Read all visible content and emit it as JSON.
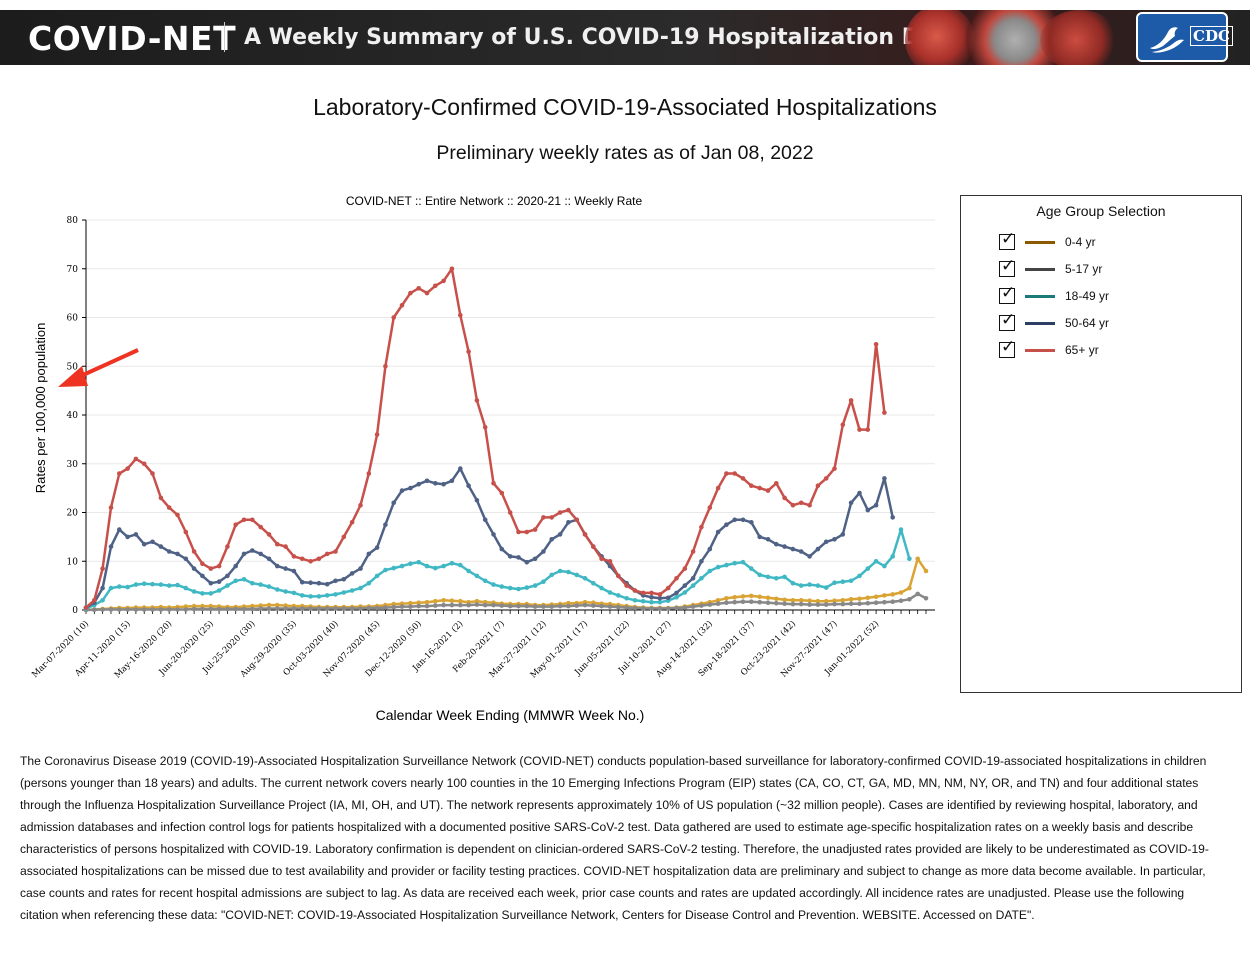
{
  "header": {
    "brand": "COVID-NET",
    "subtitle": "A Weekly Summary of U.S. COVID-19 Hospitalization Data",
    "logo_text": "CDC"
  },
  "title": "Laboratory-Confirmed COVID-19-Associated Hospitalizations",
  "subtitle": "Preliminary weekly rates as of Jan 08, 2022",
  "legend": {
    "title": "Age Group Selection",
    "items": [
      {
        "label": "0-4 yr",
        "checked": true,
        "color": "#8B5A00"
      },
      {
        "label": "5-17 yr",
        "checked": true,
        "color": "#444444"
      },
      {
        "label": "18-49 yr",
        "checked": true,
        "color": "#1a7a7a"
      },
      {
        "label": "50-64 yr",
        "checked": true,
        "color": "#2e3f66"
      },
      {
        "label": "65+ yr",
        "checked": true,
        "color": "#c8504a"
      }
    ]
  },
  "chart_data": {
    "type": "line",
    "title": "COVID-NET :: Entire Network :: 2020-21 :: Weekly Rate",
    "xlabel": "Calendar Week Ending (MMWR Week No.)",
    "ylabel": "Rates per 100,000 population",
    "ylim": [
      0,
      80
    ],
    "yticks": [
      0,
      10,
      20,
      30,
      40,
      50,
      60,
      70,
      80
    ],
    "xtick_labels": [
      "Mar-07-2020 (10)",
      "Apr-11-2020 (15)",
      "May-16-2020 (20)",
      "Jun-20-2020 (25)",
      "Jul-25-2020 (30)",
      "Aug-29-2020 (35)",
      "Oct-03-2020 (40)",
      "Nov-07-2020 (45)",
      "Dec-12-2020 (50)",
      "Jan-16-2021 (2)",
      "Feb-20-2021 (7)",
      "Mar-27-2021 (12)",
      "May-01-2021 (17)",
      "Jun-05-2021 (22)",
      "Jul-10-2021 (27)",
      "Aug-14-2021 (32)",
      "Sep-18-2021 (37)",
      "Oct-23-2021 (42)",
      "Nov-27-2021 (47)",
      "Jan-01-2022 (52)"
    ],
    "grid": true,
    "series": [
      {
        "name": "0-4 yr",
        "color": "#d9a434",
        "values": [
          0,
          0.1,
          0.2,
          0.3,
          0.4,
          0.4,
          0.5,
          0.5,
          0.5,
          0.6,
          0.5,
          0.6,
          0.7,
          0.8,
          0.8,
          0.8,
          0.7,
          0.6,
          0.6,
          0.7,
          0.8,
          0.9,
          1.0,
          1.0,
          0.9,
          0.8,
          0.8,
          0.7,
          0.6,
          0.6,
          0.6,
          0.6,
          0.6,
          0.7,
          0.7,
          0.8,
          1.0,
          1.2,
          1.3,
          1.4,
          1.5,
          1.6,
          1.8,
          2.0,
          1.9,
          1.8,
          1.6,
          1.8,
          1.6,
          1.5,
          1.3,
          1.2,
          1.2,
          1.2,
          1.0,
          1.0,
          1.1,
          1.2,
          1.4,
          1.4,
          1.6,
          1.5,
          1.3,
          1.2,
          1.0,
          0.8,
          0.6,
          0.5,
          0.4,
          0.4,
          0.4,
          0.5,
          0.7,
          1.0,
          1.3,
          1.6,
          2.0,
          2.4,
          2.6,
          2.8,
          2.9,
          2.7,
          2.5,
          2.3,
          2.1,
          2.0,
          2.0,
          1.9,
          1.8,
          1.8,
          1.9,
          2.0,
          2.2,
          2.3,
          2.5,
          2.7,
          3.0,
          3.2,
          3.6,
          4.5,
          10.5,
          8.0
        ]
      },
      {
        "name": "5-17 yr",
        "color": "#888888",
        "values": [
          0,
          0.05,
          0.1,
          0.1,
          0.1,
          0.1,
          0.1,
          0.1,
          0.1,
          0.1,
          0.1,
          0.1,
          0.1,
          0.2,
          0.2,
          0.2,
          0.2,
          0.2,
          0.2,
          0.2,
          0.2,
          0.3,
          0.3,
          0.3,
          0.3,
          0.3,
          0.3,
          0.3,
          0.3,
          0.3,
          0.3,
          0.3,
          0.3,
          0.3,
          0.4,
          0.4,
          0.5,
          0.6,
          0.7,
          0.7,
          0.8,
          0.8,
          0.9,
          1.0,
          1.0,
          1.0,
          1.0,
          1.1,
          1.0,
          1.0,
          0.9,
          0.8,
          0.8,
          0.8,
          0.7,
          0.7,
          0.7,
          0.8,
          0.8,
          0.9,
          1.0,
          0.9,
          0.8,
          0.7,
          0.6,
          0.5,
          0.4,
          0.3,
          0.3,
          0.3,
          0.3,
          0.4,
          0.5,
          0.7,
          0.9,
          1.1,
          1.3,
          1.5,
          1.6,
          1.7,
          1.7,
          1.6,
          1.5,
          1.4,
          1.3,
          1.2,
          1.2,
          1.1,
          1.1,
          1.1,
          1.2,
          1.2,
          1.3,
          1.3,
          1.4,
          1.5,
          1.6,
          1.7,
          1.9,
          2.2,
          3.3,
          2.4
        ]
      },
      {
        "name": "18-49 yr",
        "color": "#3fb8c4",
        "values": [
          0.3,
          1.0,
          2.0,
          4.5,
          4.8,
          4.7,
          5.2,
          5.4,
          5.3,
          5.2,
          5.0,
          5.1,
          4.5,
          3.8,
          3.4,
          3.4,
          4.0,
          5.0,
          6.0,
          6.3,
          5.5,
          5.2,
          4.8,
          4.2,
          3.8,
          3.5,
          3.0,
          2.8,
          2.8,
          3.0,
          3.2,
          3.6,
          4.0,
          4.5,
          5.5,
          7.0,
          8.2,
          8.6,
          9.0,
          9.5,
          9.8,
          9.0,
          8.6,
          9.0,
          9.6,
          9.2,
          8.0,
          7.0,
          6.0,
          5.2,
          4.8,
          4.5,
          4.3,
          4.6,
          5.0,
          5.8,
          7.2,
          8.0,
          7.8,
          7.2,
          6.5,
          5.5,
          4.5,
          3.6,
          3.0,
          2.4,
          2.0,
          1.8,
          1.6,
          1.6,
          1.9,
          2.6,
          3.6,
          5.0,
          6.5,
          8.0,
          8.8,
          9.2,
          9.6,
          9.8,
          8.5,
          7.2,
          6.8,
          6.5,
          6.8,
          5.5,
          5.0,
          5.2,
          5.0,
          4.6,
          5.6,
          5.8,
          6.0,
          7.0,
          8.5,
          10.0,
          9.0,
          11.0,
          16.5,
          10.5
        ]
      },
      {
        "name": "50-64 yr",
        "color": "#4f6185",
        "values": [
          0.5,
          1.5,
          4.5,
          13.0,
          16.5,
          15.0,
          15.5,
          13.5,
          14.0,
          13.0,
          12.0,
          11.5,
          10.5,
          8.5,
          7.0,
          5.5,
          5.8,
          7.0,
          9.0,
          11.5,
          12.2,
          11.5,
          10.5,
          9.0,
          8.5,
          8.0,
          5.7,
          5.6,
          5.5,
          5.3,
          6.0,
          6.3,
          7.5,
          8.5,
          11.5,
          12.8,
          17.5,
          22.0,
          24.5,
          25.0,
          25.8,
          26.5,
          26.0,
          25.8,
          26.5,
          29.0,
          25.5,
          22.5,
          18.5,
          15.5,
          12.5,
          11.0,
          10.8,
          9.8,
          10.5,
          12.0,
          14.5,
          15.5,
          18.0,
          18.5,
          15.5,
          13.0,
          11.0,
          9.0,
          7.0,
          5.5,
          4.0,
          3.0,
          2.6,
          2.4,
          2.5,
          3.5,
          5.0,
          6.5,
          10.0,
          12.5,
          16.0,
          17.5,
          18.5,
          18.5,
          18.0,
          15.0,
          14.5,
          13.5,
          13.0,
          12.5,
          12.0,
          11.0,
          12.5,
          14.0,
          14.5,
          15.5,
          22.0,
          24.0,
          20.5,
          21.5,
          27.0,
          19.0
        ]
      },
      {
        "name": "65+ yr",
        "color": "#c8504a",
        "values": [
          0.5,
          2.0,
          8.5,
          21.0,
          28.0,
          29.0,
          31.0,
          30.0,
          28.0,
          23.0,
          21.0,
          19.5,
          16.0,
          12.0,
          9.5,
          8.5,
          9.0,
          13.0,
          17.5,
          18.5,
          18.5,
          17.0,
          15.5,
          13.5,
          13.0,
          11.0,
          10.5,
          10.0,
          10.5,
          11.5,
          12.0,
          15.0,
          18.0,
          21.5,
          28.0,
          36.0,
          50.0,
          60.0,
          62.5,
          65.0,
          66.0,
          65.0,
          66.5,
          67.5,
          70.0,
          60.5,
          53.0,
          43.0,
          37.5,
          26.0,
          24.0,
          20.0,
          16.0,
          16.0,
          16.5,
          19.0,
          19.0,
          20.0,
          20.5,
          18.5,
          15.5,
          13.0,
          10.5,
          10.0,
          7.0,
          5.0,
          4.0,
          3.5,
          3.5,
          3.2,
          4.5,
          6.5,
          8.5,
          12.0,
          17.0,
          21.0,
          25.0,
          28.0,
          28.0,
          27.0,
          25.5,
          25.0,
          24.5,
          26.0,
          23.0,
          21.5,
          22.0,
          21.5,
          25.5,
          27.0,
          29.0,
          38.0,
          43.0,
          37.0,
          37.0,
          54.5,
          40.5
        ]
      }
    ]
  },
  "description": "The Coronavirus Disease 2019 (COVID-19)-Associated Hospitalization Surveillance Network (COVID-NET) conducts population-based surveillance for laboratory-confirmed COVID-19-associated hospitalizations in children (persons younger than 18 years) and adults. The current network covers nearly 100 counties in the 10 Emerging Infections Program (EIP) states (CA, CO, CT, GA, MD, MN, NM, NY, OR, and TN) and four additional states through the Influenza Hospitalization Surveillance Project (IA, MI, OH, and UT). The network represents approximately 10% of US population (~32 million people). Cases are identified by reviewing hospital, laboratory, and admission databases and infection control logs for patients hospitalized with a documented positive SARS-CoV-2 test. Data gathered are used to estimate age-specific hospitalization rates on a weekly basis and describe characteristics of persons hospitalized with COVID-19. Laboratory confirmation is dependent on clinician-ordered SARS-CoV-2 testing. Therefore, the unadjusted rates provided are likely to be underestimated as COVID-19-associated hospitalizations can be missed due to test availability and provider or facility testing practices. COVID-NET hospitalization data are preliminary and subject to change as more data become available. In particular, case counts and rates for recent hospital admissions are subject to lag. As data are received each week, prior case counts and rates are updated accordingly. All incidence rates are unadjusted. Please use the following citation when referencing these data: \"COVID-NET: COVID-19-Associated Hospitalization Surveillance Network, Centers for Disease Control and Prevention. WEBSITE. Accessed on DATE\"."
}
